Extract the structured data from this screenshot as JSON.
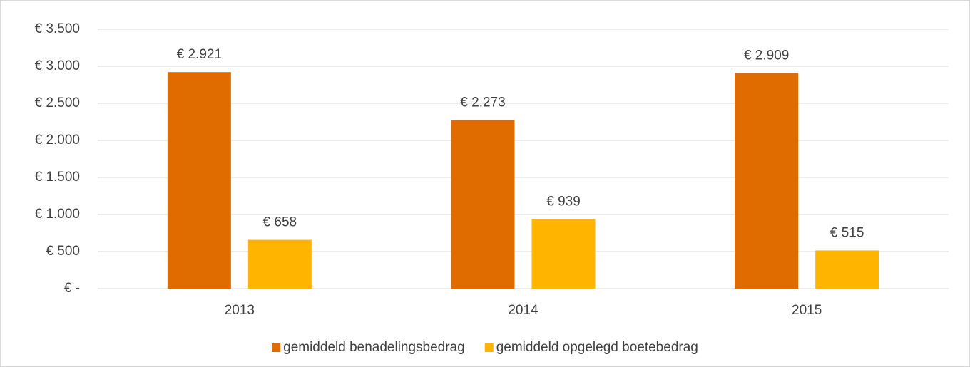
{
  "chart_data": {
    "type": "bar",
    "categories": [
      "2013",
      "2014",
      "2015"
    ],
    "series": [
      {
        "name": "gemiddeld benadelingsbedrag",
        "color": "#e06c00",
        "values": [
          2921,
          2273,
          2909
        ],
        "value_labels": [
          "€ 2.921",
          "€ 2.273",
          "€ 2.909"
        ]
      },
      {
        "name": "gemiddeld opgelegd boetebedrag",
        "color": "#ffb400",
        "values": [
          658,
          939,
          515
        ],
        "value_labels": [
          "€ 658",
          "€ 939",
          "€ 515"
        ]
      }
    ],
    "ylim": [
      0,
      3500
    ],
    "yticks": [
      {
        "value": 0,
        "label": "€ -"
      },
      {
        "value": 500,
        "label": "€ 500"
      },
      {
        "value": 1000,
        "label": "€ 1.000"
      },
      {
        "value": 1500,
        "label": "€ 1.500"
      },
      {
        "value": 2000,
        "label": "€ 2.000"
      },
      {
        "value": 2500,
        "label": "€ 2.500"
      },
      {
        "value": 3000,
        "label": "€ 3.000"
      },
      {
        "value": 3500,
        "label": "€ 3.500"
      }
    ],
    "grid": true,
    "legend": "bottom"
  }
}
